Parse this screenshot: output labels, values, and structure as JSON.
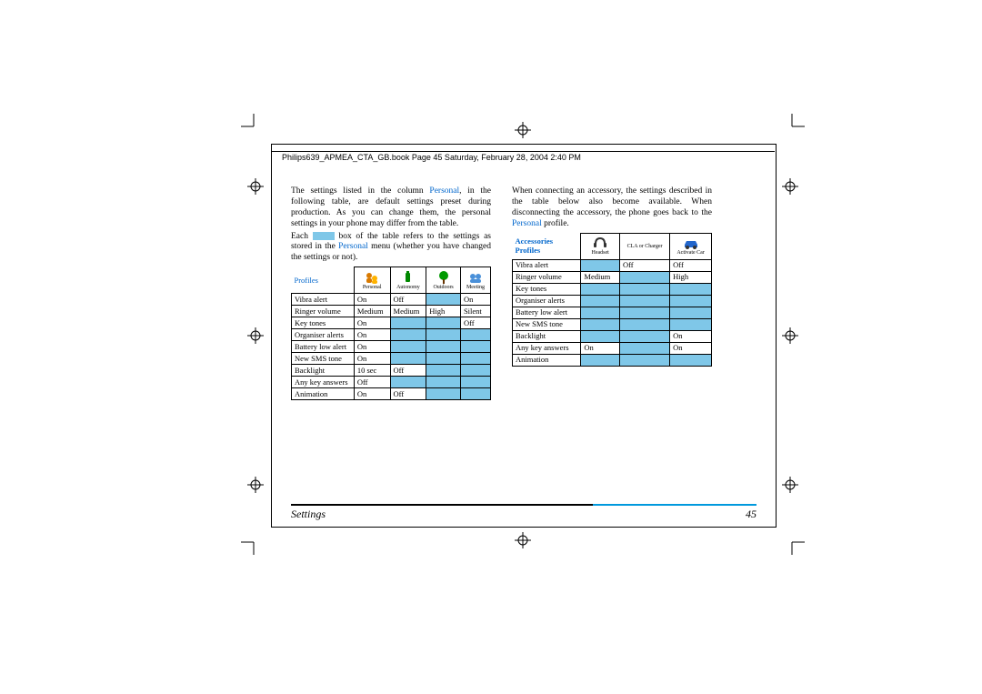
{
  "header": "Philips639_APMEA_CTA_GB.book  Page 45  Saturday, February 28, 2004  2:40 PM",
  "para1_a": "The settings listed in the column ",
  "para1_b": "Personal",
  "para1_c": ", in the following table, are default settings preset during production. As you can change them, the personal settings in your phone may differ from the table.",
  "para2_a": "Each ",
  "para2_b": " box of the table refers to the settings as stored in the ",
  "para2_c": "Personal",
  "para2_d": " menu (whether you have changed the settings or not).",
  "para3_a": "When connecting an accessory, the settings described in the table below also become available. When disconnecting the accessory, the phone goes back to the ",
  "para3_b": "Personal",
  "para3_c": " profile.",
  "labels": {
    "profiles": "Profiles",
    "accessories": "Accessories"
  },
  "table1": {
    "cols": [
      "Personal",
      "Autonomy",
      "Outdoors",
      "Meeting"
    ],
    "rows": [
      {
        "name": "Vibra alert",
        "vals": [
          "On",
          "Off",
          "",
          ""
        ],
        "fill": [
          0,
          0,
          1,
          0
        ],
        "extra": "On"
      },
      {
        "name": "Ringer volume",
        "vals": [
          "Medium",
          "Medium",
          "High",
          "Silent"
        ],
        "fill": [
          0,
          0,
          0,
          0
        ]
      },
      {
        "name": "Key tones",
        "vals": [
          "On",
          "",
          "",
          ""
        ],
        "fill": [
          0,
          1,
          1,
          0
        ],
        "extra": "Off"
      },
      {
        "name": "Organiser alerts",
        "vals": [
          "On",
          "",
          "",
          ""
        ],
        "fill": [
          0,
          1,
          1,
          1
        ]
      },
      {
        "name": "Battery low alert",
        "vals": [
          "On",
          "",
          "",
          ""
        ],
        "fill": [
          0,
          1,
          1,
          1
        ]
      },
      {
        "name": "New SMS tone",
        "vals": [
          "On",
          "",
          "",
          ""
        ],
        "fill": [
          0,
          1,
          1,
          1
        ]
      },
      {
        "name": "Backlight",
        "vals": [
          "10 sec",
          "Off",
          "",
          ""
        ],
        "fill": [
          0,
          0,
          1,
          1
        ]
      },
      {
        "name": "Any key answers",
        "vals": [
          "Off",
          "",
          "",
          ""
        ],
        "fill": [
          0,
          1,
          1,
          1
        ]
      },
      {
        "name": "Animation",
        "vals": [
          "On",
          "Off",
          "",
          ""
        ],
        "fill": [
          0,
          0,
          1,
          1
        ]
      }
    ]
  },
  "table2": {
    "cols": [
      "Headset",
      "CLA or Charger",
      "Activate Car"
    ],
    "rows": [
      {
        "name": "Vibra alert",
        "vals": [
          "",
          "Off",
          "Off"
        ],
        "fill": [
          1,
          0,
          0
        ]
      },
      {
        "name": "Ringer volume",
        "vals": [
          "Medium",
          "",
          "High"
        ],
        "fill": [
          0,
          1,
          0
        ]
      },
      {
        "name": "Key tones",
        "vals": [
          "",
          "",
          ""
        ],
        "fill": [
          1,
          1,
          1
        ]
      },
      {
        "name": "Organiser alerts",
        "vals": [
          "",
          "",
          ""
        ],
        "fill": [
          1,
          1,
          1
        ]
      },
      {
        "name": "Battery low alert",
        "vals": [
          "",
          "",
          ""
        ],
        "fill": [
          1,
          1,
          1
        ]
      },
      {
        "name": "New SMS tone",
        "vals": [
          "",
          "",
          ""
        ],
        "fill": [
          1,
          1,
          1
        ]
      },
      {
        "name": "Backlight",
        "vals": [
          "",
          "",
          "On"
        ],
        "fill": [
          1,
          1,
          0
        ]
      },
      {
        "name": "Any key answers",
        "vals": [
          "On",
          "",
          "On"
        ],
        "fill": [
          0,
          1,
          0
        ]
      },
      {
        "name": "Animation",
        "vals": [
          "",
          "",
          ""
        ],
        "fill": [
          1,
          1,
          1
        ]
      }
    ]
  },
  "footer": {
    "title": "Settings",
    "page": "45"
  },
  "colors": {
    "blue": "#0066cc",
    "fill": "#7fc7e8",
    "rule_blue": "#0099dd"
  }
}
